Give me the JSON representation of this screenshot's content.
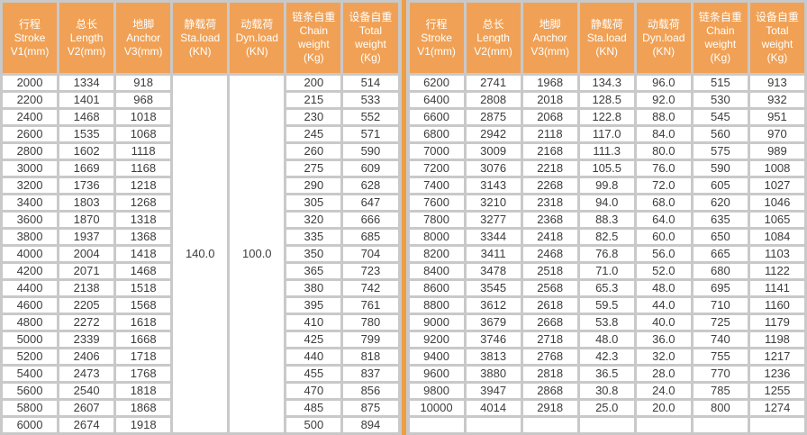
{
  "colors": {
    "header_bg": "#F0A155",
    "header_text": "#FFFFFF",
    "grid": "#C9C9C9",
    "cell_bg": "#FFFFFF",
    "cell_text": "#3C3C3C",
    "divider": "#EF9D42"
  },
  "chart_data": {
    "type": "table",
    "title": "",
    "columns": [
      {
        "key": "stroke",
        "lines": [
          "行程",
          "Stroke",
          "V1(mm)"
        ]
      },
      {
        "key": "length",
        "lines": [
          "总长",
          "Length",
          "V2(mm)"
        ]
      },
      {
        "key": "anchor",
        "lines": [
          "地脚",
          "Anchor",
          "V3(mm)"
        ]
      },
      {
        "key": "sta-load",
        "lines": [
          "静载荷",
          "Sta.load",
          "(KN)"
        ]
      },
      {
        "key": "dyn-load",
        "lines": [
          "动载荷",
          "Dyn.load",
          "(KN)"
        ]
      },
      {
        "key": "chain-weight",
        "lines": [
          "链条自重",
          "Chain",
          "weight",
          "(Kg)"
        ]
      },
      {
        "key": "total-weight",
        "lines": [
          "设备自重",
          "Total",
          "weight",
          "(Kg)"
        ]
      }
    ],
    "left_half": {
      "sta_load_merged": "140.0",
      "dyn_load_merged": "100.0",
      "rows": [
        [
          "2000",
          "1334",
          "918",
          "200",
          "514"
        ],
        [
          "2200",
          "1401",
          "968",
          "215",
          "533"
        ],
        [
          "2400",
          "1468",
          "1018",
          "230",
          "552"
        ],
        [
          "2600",
          "1535",
          "1068",
          "245",
          "571"
        ],
        [
          "2800",
          "1602",
          "1118",
          "260",
          "590"
        ],
        [
          "3000",
          "1669",
          "1168",
          "275",
          "609"
        ],
        [
          "3200",
          "1736",
          "1218",
          "290",
          "628"
        ],
        [
          "3400",
          "1803",
          "1268",
          "305",
          "647"
        ],
        [
          "3600",
          "1870",
          "1318",
          "320",
          "666"
        ],
        [
          "3800",
          "1937",
          "1368",
          "335",
          "685"
        ],
        [
          "4000",
          "2004",
          "1418",
          "350",
          "704"
        ],
        [
          "4200",
          "2071",
          "1468",
          "365",
          "723"
        ],
        [
          "4400",
          "2138",
          "1518",
          "380",
          "742"
        ],
        [
          "4600",
          "2205",
          "1568",
          "395",
          "761"
        ],
        [
          "4800",
          "2272",
          "1618",
          "410",
          "780"
        ],
        [
          "5000",
          "2339",
          "1668",
          "425",
          "799"
        ],
        [
          "5200",
          "2406",
          "1718",
          "440",
          "818"
        ],
        [
          "5400",
          "2473",
          "1768",
          "455",
          "837"
        ],
        [
          "5600",
          "2540",
          "1818",
          "470",
          "856"
        ],
        [
          "5800",
          "2607",
          "1868",
          "485",
          "875"
        ],
        [
          "6000",
          "2674",
          "1918",
          "500",
          "894"
        ]
      ]
    },
    "right_half": {
      "rows": [
        [
          "6200",
          "2741",
          "1968",
          "134.3",
          "96.0",
          "515",
          "913"
        ],
        [
          "6400",
          "2808",
          "2018",
          "128.5",
          "92.0",
          "530",
          "932"
        ],
        [
          "6600",
          "2875",
          "2068",
          "122.8",
          "88.0",
          "545",
          "951"
        ],
        [
          "6800",
          "2942",
          "2118",
          "117.0",
          "84.0",
          "560",
          "970"
        ],
        [
          "7000",
          "3009",
          "2168",
          "111.3",
          "80.0",
          "575",
          "989"
        ],
        [
          "7200",
          "3076",
          "2218",
          "105.5",
          "76.0",
          "590",
          "1008"
        ],
        [
          "7400",
          "3143",
          "2268",
          "99.8",
          "72.0",
          "605",
          "1027"
        ],
        [
          "7600",
          "3210",
          "2318",
          "94.0",
          "68.0",
          "620",
          "1046"
        ],
        [
          "7800",
          "3277",
          "2368",
          "88.3",
          "64.0",
          "635",
          "1065"
        ],
        [
          "8000",
          "3344",
          "2418",
          "82.5",
          "60.0",
          "650",
          "1084"
        ],
        [
          "8200",
          "3411",
          "2468",
          "76.8",
          "56.0",
          "665",
          "1103"
        ],
        [
          "8400",
          "3478",
          "2518",
          "71.0",
          "52.0",
          "680",
          "1122"
        ],
        [
          "8600",
          "3545",
          "2568",
          "65.3",
          "48.0",
          "695",
          "1141"
        ],
        [
          "8800",
          "3612",
          "2618",
          "59.5",
          "44.0",
          "710",
          "1160"
        ],
        [
          "9000",
          "3679",
          "2668",
          "53.8",
          "40.0",
          "725",
          "1179"
        ],
        [
          "9200",
          "3746",
          "2718",
          "48.0",
          "36.0",
          "740",
          "1198"
        ],
        [
          "9400",
          "3813",
          "2768",
          "42.3",
          "32.0",
          "755",
          "1217"
        ],
        [
          "9600",
          "3880",
          "2818",
          "36.5",
          "28.0",
          "770",
          "1236"
        ],
        [
          "9800",
          "3947",
          "2868",
          "30.8",
          "24.0",
          "785",
          "1255"
        ],
        [
          "10000",
          "4014",
          "2918",
          "25.0",
          "20.0",
          "800",
          "1274"
        ],
        [
          "",
          "",
          "",
          "",
          "",
          "",
          ""
        ]
      ]
    }
  }
}
